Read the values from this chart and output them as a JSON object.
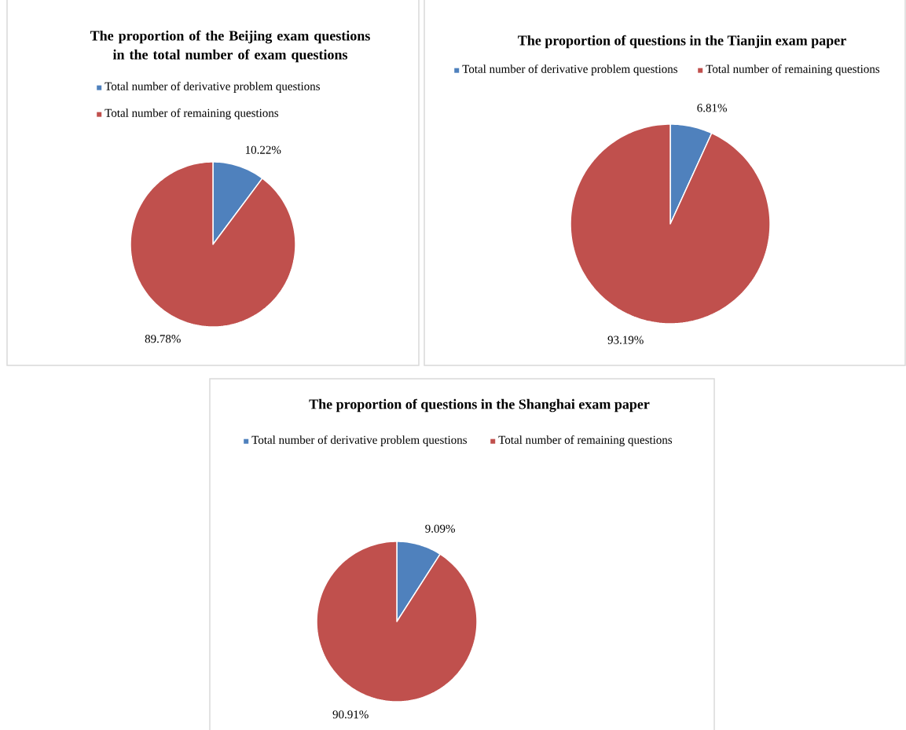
{
  "chart_data": [
    {
      "type": "pie",
      "title": "The proportion of the Beijing exam questions in the total number of exam questions",
      "categories": [
        "Total number of derivative problem questions",
        "Total number of remaining questions"
      ],
      "values": [
        10.22,
        89.78
      ],
      "value_labels": [
        "10.22%",
        "89.78%"
      ],
      "colors": [
        "#4f81bd",
        "#c0504d"
      ],
      "legend": "top"
    },
    {
      "type": "pie",
      "title": "The proportion of questions in the Tianjin exam paper",
      "categories": [
        "Total number of derivative problem questions",
        "Total number of remaining questions"
      ],
      "values": [
        6.81,
        93.19
      ],
      "value_labels": [
        "6.81%",
        "93.19%"
      ],
      "colors": [
        "#4f81bd",
        "#c0504d"
      ],
      "legend": "top"
    },
    {
      "type": "pie",
      "title": "The proportion of questions in the Shanghai exam paper",
      "categories": [
        "Total number of derivative problem questions",
        "Total number of remaining questions"
      ],
      "values": [
        9.09,
        90.91
      ],
      "value_labels": [
        "9.09%",
        "90.91%"
      ],
      "colors": [
        "#4f81bd",
        "#c0504d"
      ],
      "legend": "top"
    }
  ]
}
